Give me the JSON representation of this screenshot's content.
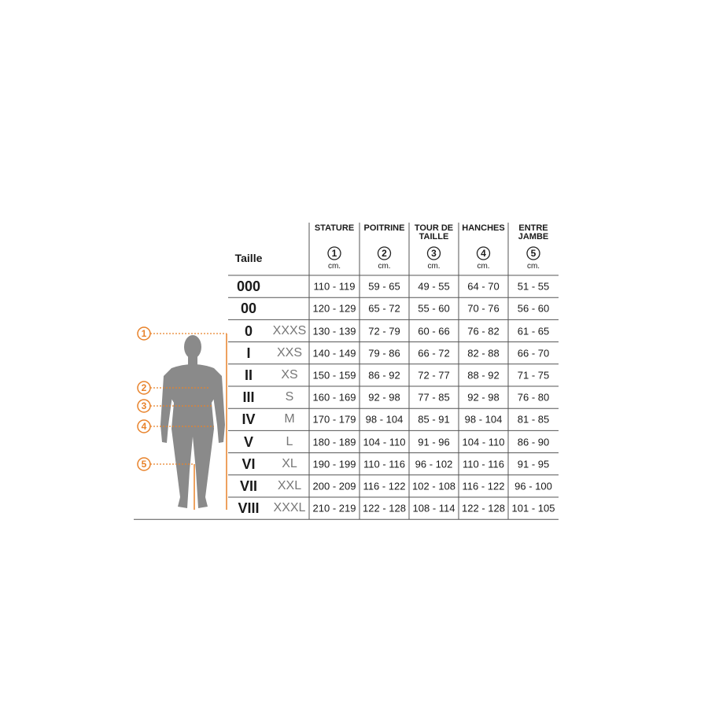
{
  "header": {
    "taille": "Taille",
    "columns": [
      {
        "label": "STATURE",
        "marker": "1",
        "unit": "cm."
      },
      {
        "label": "POITRINE",
        "marker": "2",
        "unit": "cm."
      },
      {
        "label": "TOUR DE TAILLE",
        "marker": "3",
        "unit": "cm."
      },
      {
        "label": "HANCHES",
        "marker": "4",
        "unit": "cm."
      },
      {
        "label": "ENTRE JAMBE",
        "marker": "5",
        "unit": "cm."
      }
    ]
  },
  "rows": [
    {
      "size": "000",
      "cells": [
        "110 - 119",
        "59 - 65",
        "49 - 55",
        "64 - 70",
        "51 - 55"
      ]
    },
    {
      "size": "00",
      "cells": [
        "120 - 129",
        "65 - 72",
        "55 - 60",
        "70 - 76",
        "56 - 60"
      ]
    },
    {
      "size": "0",
      "letter": "XXXS",
      "cells": [
        "130 - 139",
        "72 - 79",
        "60 - 66",
        "76 - 82",
        "61 - 65"
      ]
    },
    {
      "size": "I",
      "letter": "XXS",
      "cells": [
        "140 - 149",
        "79 - 86",
        "66 - 72",
        "82 - 88",
        "66 - 70"
      ]
    },
    {
      "size": "II",
      "letter": "XS",
      "cells": [
        "150 - 159",
        "86 - 92",
        "72 - 77",
        "88 - 92",
        "71 - 75"
      ]
    },
    {
      "size": "III",
      "letter": "S",
      "cells": [
        "160 - 169",
        "92 - 98",
        "77 - 85",
        "92 - 98",
        "76 - 80"
      ]
    },
    {
      "size": "IV",
      "letter": "M",
      "cells": [
        "170 - 179",
        "98 - 104",
        "85 - 91",
        "98 - 104",
        "81 - 85"
      ]
    },
    {
      "size": "V",
      "letter": "L",
      "cells": [
        "180 - 189",
        "104 - 110",
        "91 - 96",
        "104 - 110",
        "86 - 90"
      ]
    },
    {
      "size": "VI",
      "letter": "XL",
      "cells": [
        "190 - 199",
        "110 - 116",
        "96 - 102",
        "110 - 116",
        "91 - 95"
      ]
    },
    {
      "size": "VII",
      "letter": "XXL",
      "cells": [
        "200 - 209",
        "116 - 122",
        "102 - 108",
        "116 - 122",
        "96 - 100"
      ]
    },
    {
      "size": "VIII",
      "letter": "XXXL",
      "cells": [
        "210 - 219",
        "122 - 128",
        "108 - 114",
        "122 - 128",
        "101 - 105"
      ]
    }
  ],
  "figure_markers": [
    "1",
    "2",
    "3",
    "4",
    "5"
  ]
}
